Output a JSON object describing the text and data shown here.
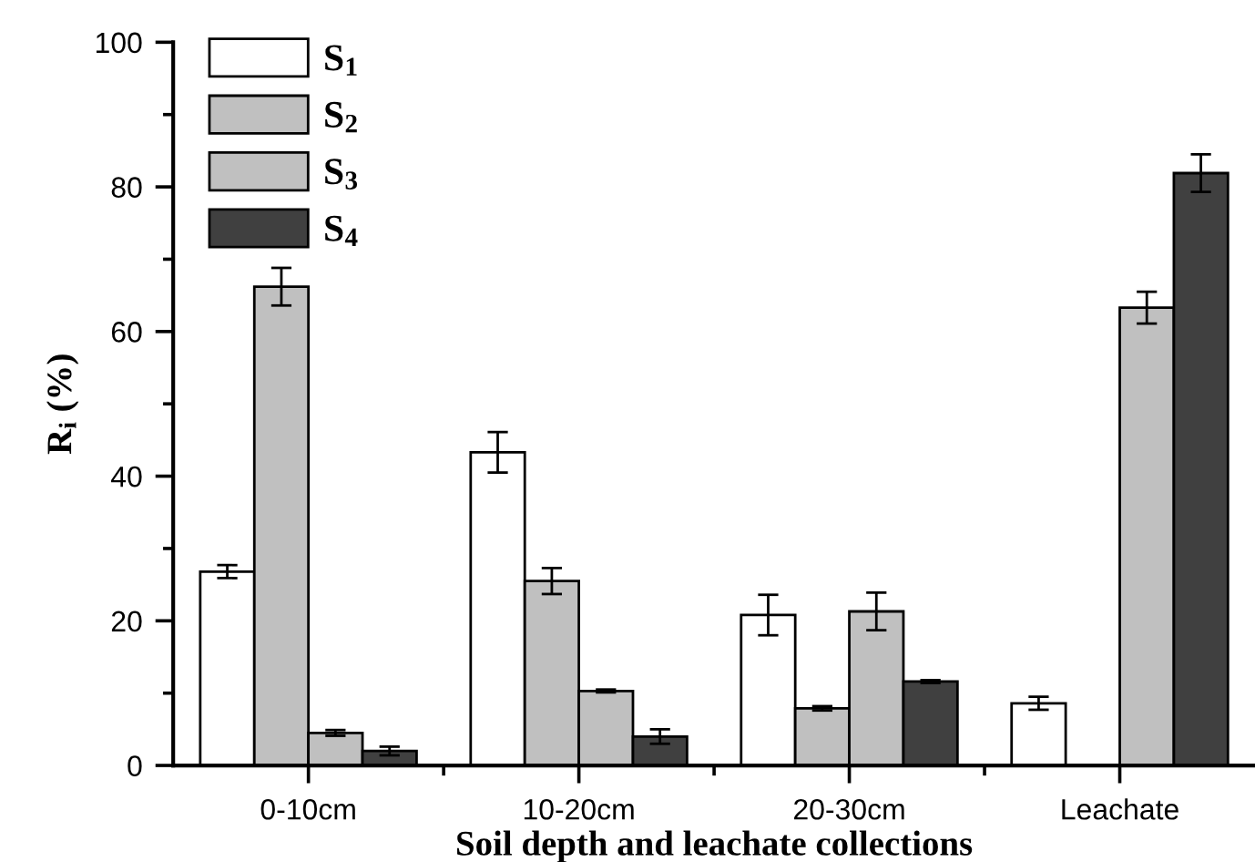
{
  "chart_data": {
    "type": "bar",
    "xlabel": "Soil depth and leachate collections",
    "ylabel": "R$_{i}$ (%)",
    "categories": [
      "0-10cm",
      "10-20cm",
      "20-30cm",
      "Leachate"
    ],
    "series": [
      {
        "name": "S$_{1}$",
        "color": "#ffffff",
        "values": [
          26.8,
          43.3,
          20.8,
          8.6
        ],
        "errors": [
          0.9,
          2.8,
          2.8,
          0.9
        ]
      },
      {
        "name": "S$_{2}$",
        "color": "#c0c0c0",
        "values": [
          66.2,
          25.5,
          7.9,
          null
        ],
        "errors": [
          2.6,
          1.8,
          0.3,
          null
        ]
      },
      {
        "name": "S$_{3}$",
        "color": "#c0c0c0",
        "values": [
          4.5,
          10.3,
          21.3,
          63.3
        ],
        "errors": [
          0.4,
          0.2,
          2.6,
          2.2
        ]
      },
      {
        "name": "S$_{4}$",
        "color": "#404040",
        "values": [
          2.0,
          4.0,
          11.6,
          81.9
        ],
        "errors": [
          0.6,
          1.0,
          0.2,
          2.6
        ]
      }
    ],
    "ylim": [
      0,
      100
    ],
    "yticks": [
      0,
      {
        "value": 10,
        "label": null
      },
      20,
      {
        "value": 30,
        "label": null
      },
      40,
      {
        "value": 50,
        "label": null
      },
      60,
      {
        "value": 70,
        "label": null
      },
      80,
      {
        "value": 90,
        "label": null
      },
      100
    ],
    "legend": "top left"
  }
}
